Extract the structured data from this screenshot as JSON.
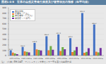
{
  "chart_data": {
    "type": "bar",
    "title": "図表1-0-9　世界の自然災害発生頻度及び被害状況の推移（年平均値）",
    "annotations": [
      "注）（出典）EM-DAT、マンシュタイン大学センター等を基に内閣府作成"
    ],
    "categories": [
      "1970-1979年",
      "1980-1989年",
      "1990-1999年",
      "2000-2004年",
      "2005-2009年",
      "2010-2014年",
      "2015-2019年",
      "2020-2022年"
    ],
    "series": [
      {
        "name": "発生件数",
        "color": "#4472C4",
        "values": [
          97.9,
          163.3,
          238.8,
          365.3,
          397.9,
          329.2,
          801.9,
          585.2
        ],
        "data_labels": true
      },
      {
        "name": "死者数（百人）",
        "color": "#ED7D31",
        "values": [
          55.0,
          80.0,
          114.5,
          100.0,
          85.0,
          67.3,
          54.0,
          74.0
        ]
      },
      {
        "name": "被災者数（百万人）",
        "color": "#70AD47",
        "values": [
          40.0,
          70.0,
          107.4,
          180.0,
          160.0,
          97.0,
          69.0,
          59.0
        ]
      },
      {
        "name": "被害額（十億円）",
        "color": "#7030A0",
        "values": [
          25.0,
          60.0,
          95.0,
          110.0,
          120.0,
          162.0,
          138.0,
          141.0
        ]
      }
    ],
    "ylim": [
      0,
      900
    ],
    "yticks": [
      0,
      100,
      200,
      300,
      400,
      500,
      600,
      700,
      800,
      900
    ],
    "grid": true,
    "legend": "upper left"
  }
}
